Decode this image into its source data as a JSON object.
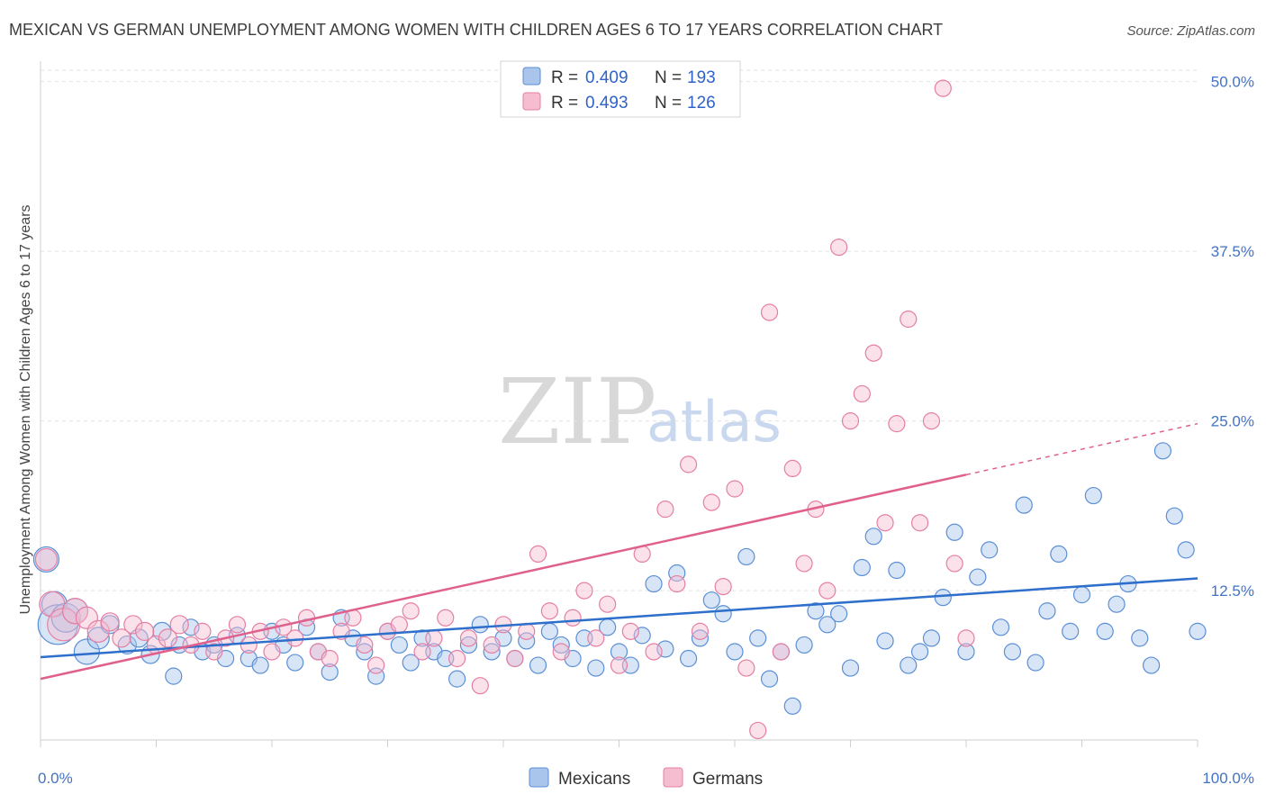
{
  "title": "MEXICAN VS GERMAN UNEMPLOYMENT AMONG WOMEN WITH CHILDREN AGES 6 TO 17 YEARS CORRELATION CHART",
  "source": "Source: ZipAtlas.com",
  "watermark": {
    "zip": "ZIP",
    "atlas": "atlas"
  },
  "legend": {
    "r_label": "R =",
    "n_label": "N =",
    "entries": [
      {
        "r": "0.409",
        "n": "193"
      },
      {
        "r": "0.493",
        "n": "126"
      }
    ]
  },
  "colors": {
    "mexicans_fill": "#a9c5ec",
    "mexicans_stroke": "#5b8fd6",
    "mexicans_line": "#2e6fcc",
    "germans_fill": "#f6bcd0",
    "germans_stroke": "#e57fa3",
    "germans_line": "#e0608c"
  },
  "chart_data": {
    "type": "scatter",
    "title": "MEXICAN VS GERMAN UNEMPLOYMENT AMONG WOMEN WITH CHILDREN AGES 6 TO 17 YEARS CORRELATION CHART",
    "xlabel": "",
    "ylabel": "Unemployment Among Women with Children Ages 6 to 17 years",
    "xlim": [
      0,
      100
    ],
    "ylim": [
      1.5,
      51.5
    ],
    "x_tick_labels": [
      "0.0%",
      "100.0%"
    ],
    "y_ticks": [
      12.5,
      25.0,
      37.5,
      50.0
    ],
    "y_tick_labels": [
      "12.5%",
      "25.0%",
      "37.5%",
      "50.0%"
    ],
    "grid": "horizontal dashed",
    "legend_position": "top-center and bottom",
    "series": [
      {
        "name": "Mexicans",
        "r": 0.409,
        "n": 193,
        "trend": {
          "x": [
            0,
            100
          ],
          "y": [
            7.6,
            13.4
          ],
          "dashed_from": null
        },
        "points": [
          [
            0.5,
            14.8,
            14
          ],
          [
            1.2,
            11.5,
            14
          ],
          [
            1.5,
            10.0,
            22
          ],
          [
            2.2,
            10.5,
            16
          ],
          [
            3.0,
            11.0,
            14
          ],
          [
            4.0,
            8.0,
            14
          ],
          [
            5.0,
            9.0,
            12
          ],
          [
            6.0,
            10.0,
            10
          ],
          [
            7.5,
            8.5,
            10
          ],
          [
            8.5,
            9.0,
            10
          ],
          [
            9.5,
            7.8,
            10
          ],
          [
            10.5,
            9.5,
            10
          ],
          [
            11.5,
            6.2,
            9
          ],
          [
            12.0,
            8.5,
            9
          ],
          [
            13.0,
            9.8,
            9
          ],
          [
            14.0,
            8.0,
            9
          ],
          [
            15.0,
            8.5,
            9
          ],
          [
            16.0,
            7.5,
            9
          ],
          [
            17.0,
            9.2,
            9
          ],
          [
            18.0,
            7.5,
            9
          ],
          [
            19.0,
            7.0,
            9
          ],
          [
            20.0,
            9.5,
            9
          ],
          [
            21.0,
            8.5,
            9
          ],
          [
            22.0,
            7.2,
            9
          ],
          [
            23.0,
            9.8,
            9
          ],
          [
            24.0,
            8.0,
            9
          ],
          [
            25.0,
            6.5,
            9
          ],
          [
            26.0,
            10.5,
            9
          ],
          [
            27.0,
            9.0,
            9
          ],
          [
            28.0,
            8.0,
            9
          ],
          [
            29.0,
            6.2,
            9
          ],
          [
            30.0,
            9.5,
            9
          ],
          [
            31.0,
            8.5,
            9
          ],
          [
            32.0,
            7.2,
            9
          ],
          [
            33.0,
            9.0,
            9
          ],
          [
            34.0,
            8.0,
            9
          ],
          [
            35.0,
            7.5,
            9
          ],
          [
            36.0,
            6.0,
            9
          ],
          [
            37.0,
            8.5,
            9
          ],
          [
            38.0,
            10.0,
            9
          ],
          [
            39.0,
            8.0,
            9
          ],
          [
            40.0,
            9.0,
            9
          ],
          [
            41.0,
            7.5,
            9
          ],
          [
            42.0,
            8.8,
            9
          ],
          [
            43.0,
            7.0,
            9
          ],
          [
            44.0,
            9.5,
            9
          ],
          [
            45.0,
            8.5,
            9
          ],
          [
            46.0,
            7.5,
            9
          ],
          [
            47.0,
            9.0,
            9
          ],
          [
            48.0,
            6.8,
            9
          ],
          [
            49.0,
            9.8,
            9
          ],
          [
            50.0,
            8.0,
            9
          ],
          [
            51.0,
            7.0,
            9
          ],
          [
            52.0,
            9.2,
            9
          ],
          [
            53.0,
            13.0,
            9
          ],
          [
            54.0,
            8.2,
            9
          ],
          [
            55.0,
            13.8,
            9
          ],
          [
            56.0,
            7.5,
            9
          ],
          [
            57.0,
            9.0,
            9
          ],
          [
            58.0,
            11.8,
            9
          ],
          [
            59.0,
            10.8,
            9
          ],
          [
            60.0,
            8.0,
            9
          ],
          [
            61.0,
            15.0,
            9
          ],
          [
            62.0,
            9.0,
            9
          ],
          [
            63.0,
            6.0,
            9
          ],
          [
            64.0,
            8.0,
            9
          ],
          [
            65.0,
            4.0,
            9
          ],
          [
            66.0,
            8.5,
            9
          ],
          [
            67.0,
            11.0,
            9
          ],
          [
            68.0,
            10.0,
            9
          ],
          [
            69.0,
            10.8,
            9
          ],
          [
            70.0,
            6.8,
            9
          ],
          [
            71.0,
            14.2,
            9
          ],
          [
            72.0,
            16.5,
            9
          ],
          [
            73.0,
            8.8,
            9
          ],
          [
            74.0,
            14.0,
            9
          ],
          [
            75.0,
            7.0,
            9
          ],
          [
            76.0,
            8.0,
            9
          ],
          [
            77.0,
            9.0,
            9
          ],
          [
            78.0,
            12.0,
            9
          ],
          [
            79.0,
            16.8,
            9
          ],
          [
            80.0,
            8.0,
            9
          ],
          [
            81.0,
            13.5,
            9
          ],
          [
            82.0,
            15.5,
            9
          ],
          [
            83.0,
            9.8,
            9
          ],
          [
            84.0,
            8.0,
            9
          ],
          [
            85.0,
            18.8,
            9
          ],
          [
            86.0,
            7.2,
            9
          ],
          [
            87.0,
            11.0,
            9
          ],
          [
            88.0,
            15.2,
            9
          ],
          [
            89.0,
            9.5,
            9
          ],
          [
            90.0,
            12.2,
            9
          ],
          [
            91.0,
            19.5,
            9
          ],
          [
            92.0,
            9.5,
            9
          ],
          [
            93.0,
            11.5,
            9
          ],
          [
            94.0,
            13.0,
            9
          ],
          [
            95.0,
            9.0,
            9
          ],
          [
            96.0,
            7.0,
            9
          ],
          [
            97.0,
            22.8,
            9
          ],
          [
            98.0,
            18.0,
            9
          ],
          [
            99.0,
            15.5,
            9
          ],
          [
            100.0,
            9.5,
            9
          ]
        ]
      },
      {
        "name": "Germans",
        "r": 0.493,
        "n": 126,
        "trend": {
          "x": [
            0,
            100
          ],
          "y": [
            6.0,
            24.8
          ],
          "dashed_from": 80
        },
        "points": [
          [
            0.5,
            14.8,
            12
          ],
          [
            1.0,
            11.5,
            14
          ],
          [
            2.0,
            10.0,
            18
          ],
          [
            3.0,
            11.0,
            14
          ],
          [
            4.0,
            10.5,
            12
          ],
          [
            5.0,
            9.5,
            12
          ],
          [
            6.0,
            10.2,
            10
          ],
          [
            7.0,
            9.0,
            10
          ],
          [
            8.0,
            10.0,
            10
          ],
          [
            9.0,
            9.5,
            10
          ],
          [
            10.0,
            8.5,
            10
          ],
          [
            11.0,
            9.0,
            10
          ],
          [
            12.0,
            10.0,
            10
          ],
          [
            13.0,
            8.5,
            9
          ],
          [
            14.0,
            9.5,
            9
          ],
          [
            15.0,
            8.0,
            9
          ],
          [
            16.0,
            9.0,
            9
          ],
          [
            17.0,
            10.0,
            9
          ],
          [
            18.0,
            8.5,
            9
          ],
          [
            19.0,
            9.5,
            9
          ],
          [
            20.0,
            8.0,
            9
          ],
          [
            21.0,
            9.8,
            9
          ],
          [
            22.0,
            9.0,
            9
          ],
          [
            23.0,
            10.5,
            9
          ],
          [
            24.0,
            8.0,
            9
          ],
          [
            25.0,
            7.5,
            9
          ],
          [
            26.0,
            9.5,
            9
          ],
          [
            27.0,
            10.5,
            9
          ],
          [
            28.0,
            8.5,
            9
          ],
          [
            29.0,
            7.0,
            9
          ],
          [
            30.0,
            9.5,
            9
          ],
          [
            31.0,
            10.0,
            9
          ],
          [
            32.0,
            11.0,
            9
          ],
          [
            33.0,
            8.0,
            9
          ],
          [
            34.0,
            9.0,
            9
          ],
          [
            35.0,
            10.5,
            9
          ],
          [
            36.0,
            7.5,
            9
          ],
          [
            37.0,
            9.0,
            9
          ],
          [
            38.0,
            5.5,
            9
          ],
          [
            39.0,
            8.5,
            9
          ],
          [
            40.0,
            10.0,
            9
          ],
          [
            41.0,
            7.5,
            9
          ],
          [
            42.0,
            9.5,
            9
          ],
          [
            43.0,
            15.2,
            9
          ],
          [
            44.0,
            11.0,
            9
          ],
          [
            45.0,
            8.0,
            9
          ],
          [
            46.0,
            10.5,
            9
          ],
          [
            47.0,
            12.5,
            9
          ],
          [
            48.0,
            9.0,
            9
          ],
          [
            49.0,
            11.5,
            9
          ],
          [
            50.0,
            7.0,
            9
          ],
          [
            51.0,
            9.5,
            9
          ],
          [
            52.0,
            15.2,
            9
          ],
          [
            53.0,
            8.0,
            9
          ],
          [
            54.0,
            18.5,
            9
          ],
          [
            55.0,
            13.0,
            9
          ],
          [
            56.0,
            21.8,
            9
          ],
          [
            57.0,
            9.5,
            9
          ],
          [
            58.0,
            19.0,
            9
          ],
          [
            59.0,
            12.8,
            9
          ],
          [
            60.0,
            20.0,
            9
          ],
          [
            61.0,
            6.8,
            9
          ],
          [
            62.0,
            2.2,
            9
          ],
          [
            63.0,
            33.0,
            9
          ],
          [
            64.0,
            8.0,
            9
          ],
          [
            65.0,
            21.5,
            9
          ],
          [
            66.0,
            14.5,
            9
          ],
          [
            67.0,
            18.5,
            9
          ],
          [
            68.0,
            12.5,
            9
          ],
          [
            69.0,
            37.8,
            9
          ],
          [
            70.0,
            25.0,
            9
          ],
          [
            71.0,
            27.0,
            9
          ],
          [
            72.0,
            30.0,
            9
          ],
          [
            73.0,
            17.5,
            9
          ],
          [
            74.0,
            24.8,
            9
          ],
          [
            75.0,
            32.5,
            9
          ],
          [
            76.0,
            17.5,
            9
          ],
          [
            77.0,
            25.0,
            9
          ],
          [
            78.0,
            49.5,
            9
          ],
          [
            79.0,
            14.5,
            9
          ],
          [
            80.0,
            9.0,
            9
          ]
        ]
      }
    ]
  },
  "bottom_legend": [
    "Mexicans",
    "Germans"
  ]
}
